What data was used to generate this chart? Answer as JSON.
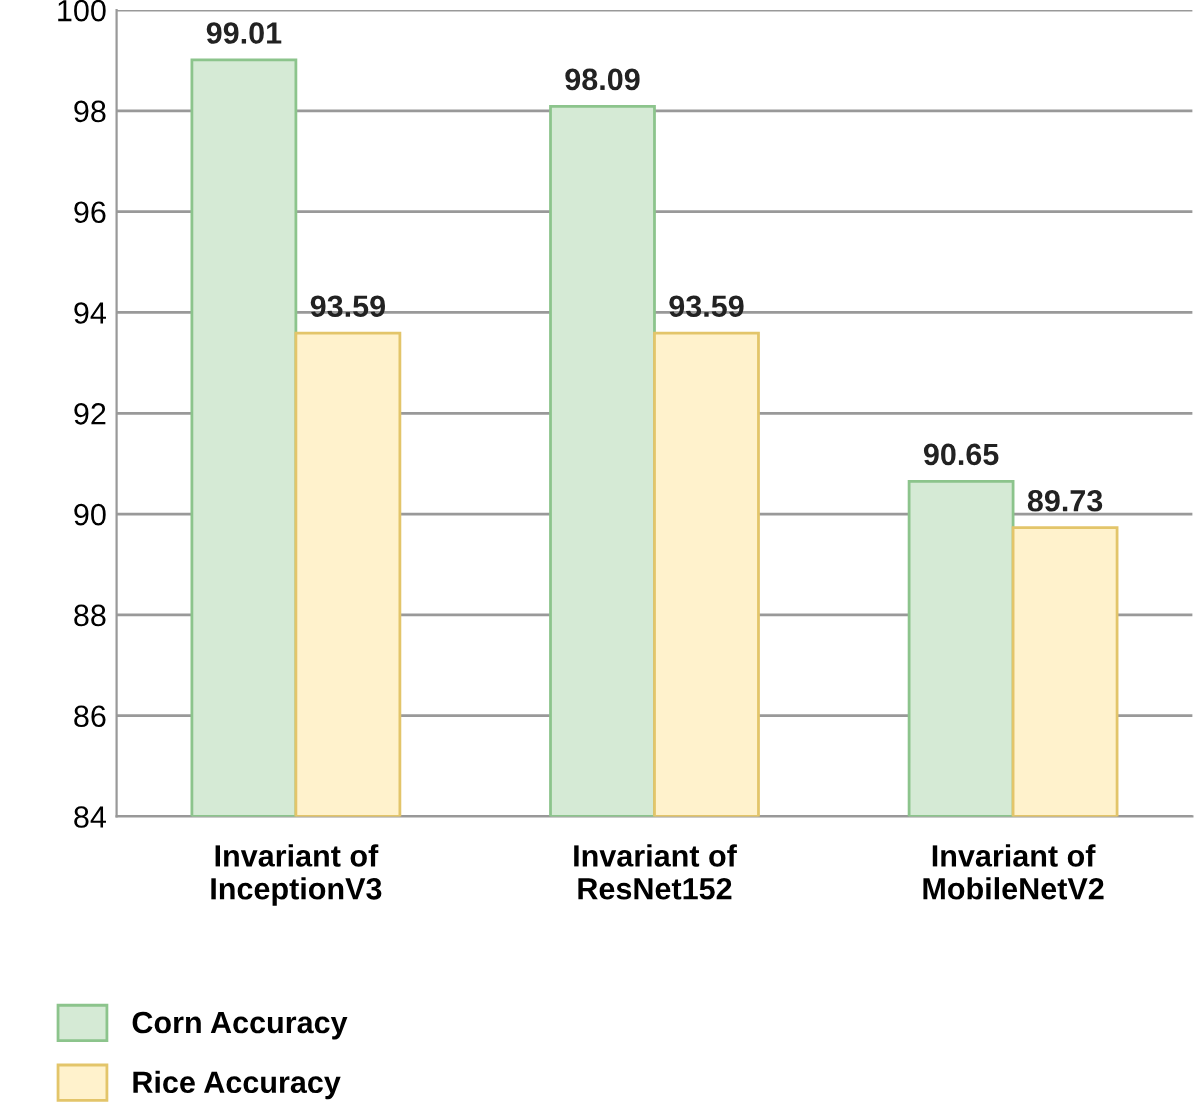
{
  "chart_data": {
    "type": "bar",
    "categories": [
      "Invariant of\nInceptionV3",
      "Invariant of\nResNet152",
      "Invariant of\nMobileNetV2"
    ],
    "series": [
      {
        "name": "Corn Accuracy",
        "color": "#d5ead5",
        "values": [
          99.01,
          98.09,
          90.65
        ]
      },
      {
        "name": "Rice Accuracy",
        "color": "#fff2cc",
        "values": [
          93.59,
          93.59,
          89.73
        ]
      }
    ],
    "ylim": [
      84,
      100
    ],
    "yticks": [
      84,
      86,
      88,
      90,
      92,
      94,
      96,
      98,
      100
    ],
    "grid": "y",
    "legend": "bottom left",
    "data_labels": true
  }
}
